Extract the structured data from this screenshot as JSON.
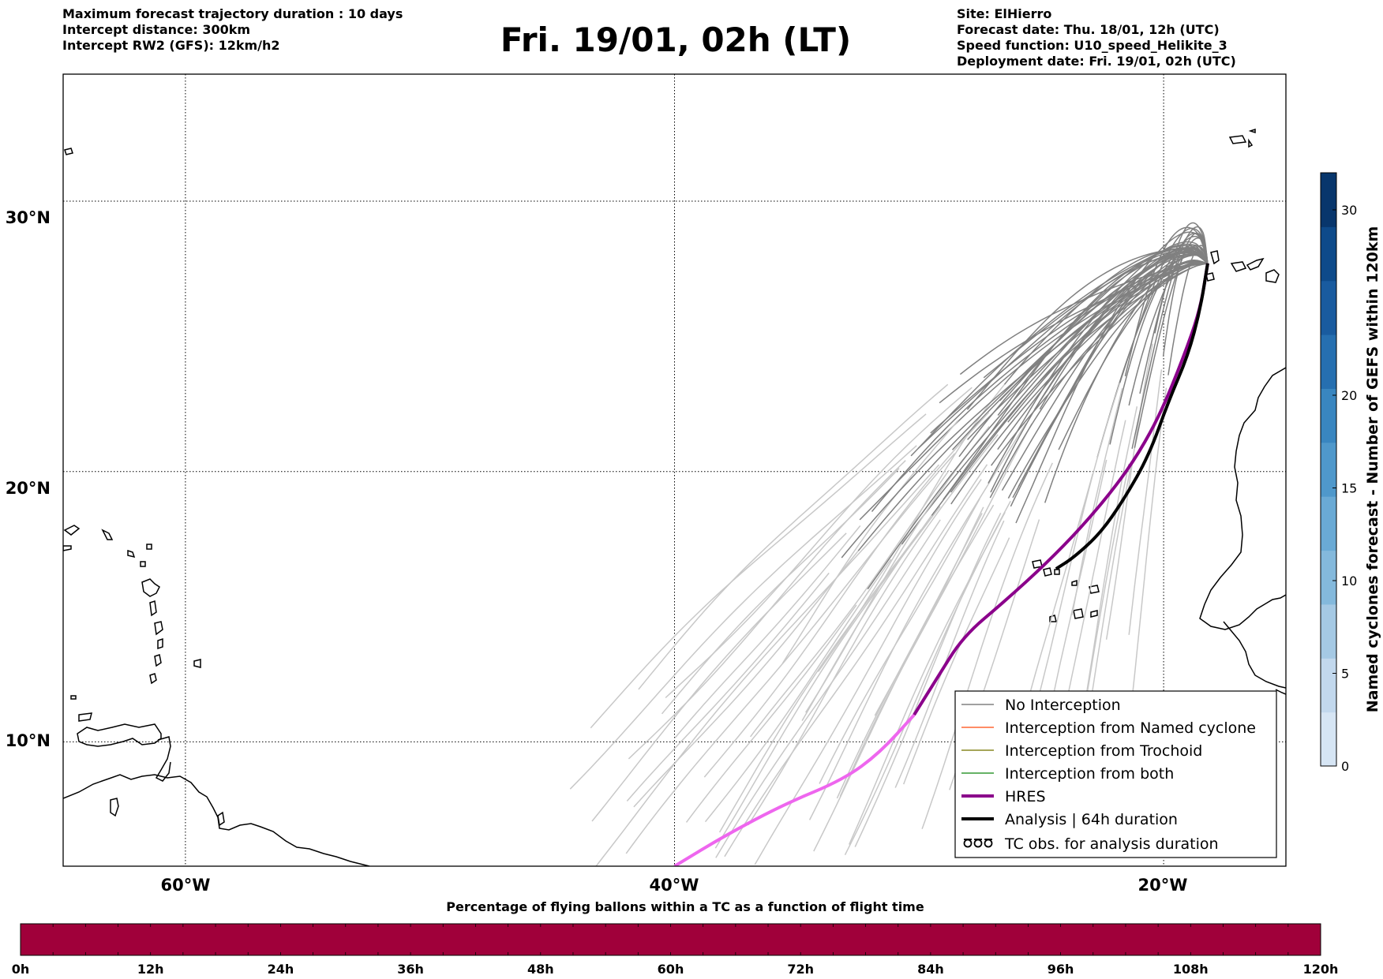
{
  "header": {
    "left_lines": [
      "Maximum forecast trajectory duration : 10 days",
      "Intercept distance: 300km",
      "Intercept RW2 (GFS):  12km/h2"
    ],
    "title": "Fri. 19/01, 02h (LT)",
    "right_lines": [
      "Site: ElHierro",
      "Forecast date: Thu. 18/01, 12h (UTC)",
      "Speed function: U10_speed_Helikite_3",
      "Deployment date: Fri. 19/01, 02h (UTC)"
    ]
  },
  "map": {
    "lon_range": [
      -65,
      -15
    ],
    "lat_range": [
      5.4,
      34.7
    ],
    "lat_ticks": [
      {
        "value": 30,
        "label": "30°N"
      },
      {
        "value": 20,
        "label": "20°N"
      },
      {
        "value": 10,
        "label": "10°N"
      }
    ],
    "lon_ticks": [
      {
        "value": -60,
        "label": "60°W"
      },
      {
        "value": -40,
        "label": "40°W"
      },
      {
        "value": -20,
        "label": "20°W"
      }
    ],
    "origin": {
      "lon": -18.2,
      "lat": 27.7
    },
    "colors": {
      "no_interception": "#808080",
      "late_trajectory": "#c8c8c8",
      "named_cyclone": "#ff6633",
      "trochoid": "#888822",
      "both": "#339933",
      "hres": "#8b008b",
      "hres_late": "#ee66ee",
      "analysis": "#000000"
    },
    "hres_track": [
      [
        -18.2,
        27.7
      ],
      [
        -18.5,
        26.0
      ],
      [
        -19.2,
        24.2
      ],
      [
        -20.1,
        22.2
      ],
      [
        -21.0,
        20.7
      ],
      [
        -22.0,
        19.4
      ],
      [
        -23.4,
        17.9
      ],
      [
        -24.8,
        16.6
      ],
      [
        -26.5,
        15.2
      ],
      [
        -28.2,
        13.9
      ],
      [
        -29.3,
        12.3
      ],
      [
        -30.2,
        11.0
      ],
      [
        -31.6,
        9.6
      ],
      [
        -33.1,
        8.6
      ],
      [
        -35.5,
        7.7
      ],
      [
        -38.0,
        6.5
      ],
      [
        -40.0,
        5.4
      ]
    ],
    "hres_late_from_index": 11,
    "analysis_track": [
      [
        -18.2,
        27.7
      ],
      [
        -18.5,
        26.0
      ],
      [
        -19.0,
        24.3
      ],
      [
        -19.8,
        22.6
      ],
      [
        -20.6,
        20.6
      ],
      [
        -21.6,
        19.0
      ],
      [
        -22.6,
        17.7
      ],
      [
        -23.7,
        16.8
      ],
      [
        -24.4,
        16.4
      ]
    ]
  },
  "legend": {
    "items": [
      {
        "label": "No Interception",
        "style": "no_interception"
      },
      {
        "label": "Interception from Named cyclone",
        "style": "named_cyclone"
      },
      {
        "label": "Interception from Trochoid",
        "style": "trochoid"
      },
      {
        "label": "Interception from both",
        "style": "both"
      },
      {
        "label": "HRES",
        "style": "hres"
      },
      {
        "label": "Analysis | 64h duration",
        "style": "analysis"
      },
      {
        "label": "TC obs. for analysis duration",
        "style": "tc_obs"
      }
    ]
  },
  "right_colorbar": {
    "label": "Named cyclones forecast - Number of GEFS within 120km",
    "min": 0,
    "max": 32,
    "ticks": [
      0,
      5,
      10,
      15,
      20,
      30
    ],
    "colors": [
      "#d6e5f4",
      "#c2d8ed",
      "#a5c9e4",
      "#84b9dc",
      "#6aaad5",
      "#4f98cb",
      "#3986c0",
      "#266fb0",
      "#195b9f",
      "#0e4a8a",
      "#08366c"
    ]
  },
  "bottom_bar": {
    "title": "Percentage of flying ballons within a TC as a function of flight time",
    "fill_color": "#a0003a",
    "ticks": [
      "0h",
      "12h",
      "24h",
      "36h",
      "48h",
      "60h",
      "72h",
      "84h",
      "96h",
      "108h",
      "120h"
    ]
  }
}
